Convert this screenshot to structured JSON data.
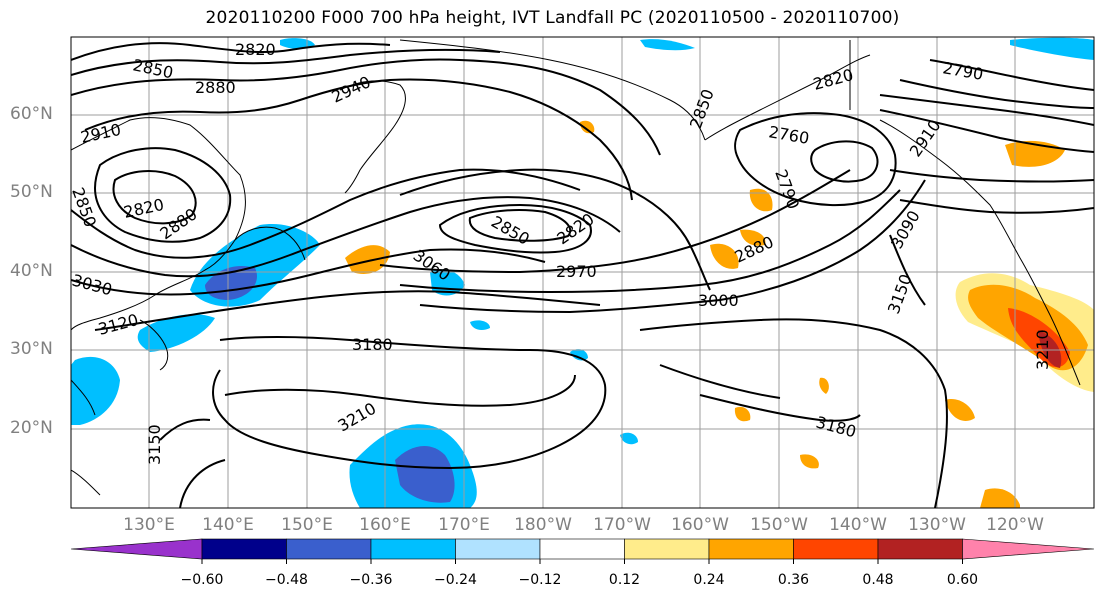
{
  "title": "2020110200 F000 700 hPa height, IVT Landfall PC (2020110500 - 2020110700)",
  "map": {
    "lat_labels": [
      "60°N",
      "50°N",
      "40°N",
      "30°N",
      "20°N"
    ],
    "lon_labels": [
      "130°E",
      "140°E",
      "150°E",
      "160°E",
      "170°E",
      "180°W",
      "170°W",
      "160°W",
      "150°W",
      "140°W",
      "130°W",
      "120°W"
    ],
    "contour_labels": [
      "2820",
      "2850",
      "2880",
      "2940",
      "2910",
      "2850",
      "2820",
      "2880",
      "3030",
      "3120",
      "3060",
      "2850",
      "2820",
      "2970",
      "3000",
      "3180",
      "3210",
      "3150",
      "2820",
      "2760",
      "2790",
      "2850",
      "2880",
      "2910",
      "3090",
      "3150",
      "3180",
      "3210",
      "2790"
    ]
  },
  "colorbar": {
    "tick_labels": [
      "−0.60",
      "−0.48",
      "−0.36",
      "−0.24",
      "−0.12",
      "0.12",
      "0.24",
      "0.36",
      "0.48",
      "0.60"
    ],
    "colors": [
      "#9932cc",
      "#00008b",
      "#3a5fcd",
      "#00bfff",
      "#b0e2ff",
      "#ffffff",
      "#ffec8b",
      "#ffa500",
      "#ff4500",
      "#b22222",
      "#ff82ab"
    ]
  }
}
